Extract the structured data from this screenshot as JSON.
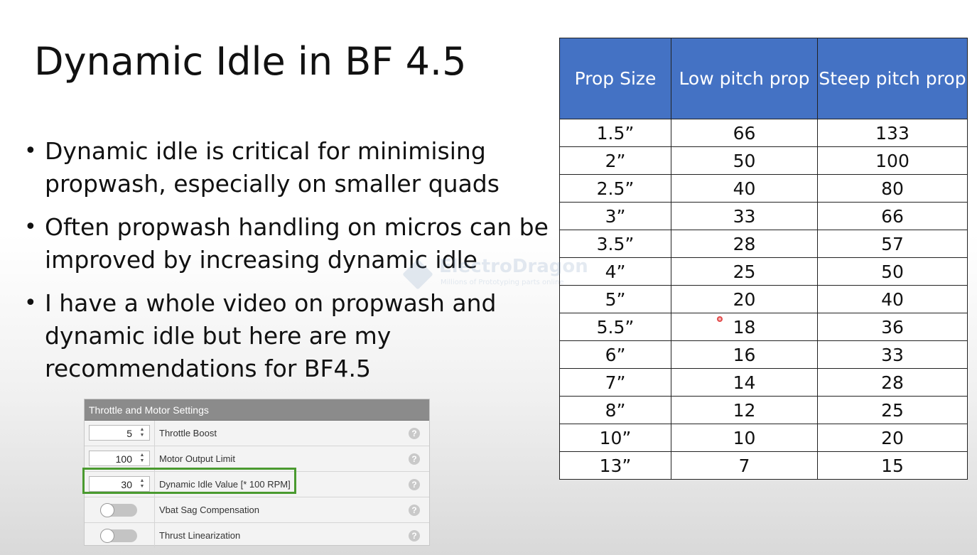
{
  "slide": {
    "title": "Dynamic Idle in BF 4.5",
    "bullets": [
      "Dynamic idle is critical for minimising propwash, especially on smaller quads",
      "Often propwash handling on micros can be improved by increasing dynamic idle",
      "I have a whole video on propwash and dynamic idle but here are my recommendations for BF4.5"
    ]
  },
  "table": {
    "headers": [
      "Prop Size",
      "Low pitch prop",
      "Steep pitch prop"
    ],
    "rows": [
      [
        "1.5”",
        "66",
        "133"
      ],
      [
        "2”",
        "50",
        "100"
      ],
      [
        "2.5”",
        "40",
        "80"
      ],
      [
        "3”",
        "33",
        "66"
      ],
      [
        "3.5”",
        "28",
        "57"
      ],
      [
        "4”",
        "25",
        "50"
      ],
      [
        "5”",
        "20",
        "40"
      ],
      [
        "5.5”",
        "18",
        "36"
      ],
      [
        "6”",
        "16",
        "33"
      ],
      [
        "7”",
        "14",
        "28"
      ],
      [
        "8”",
        "12",
        "25"
      ],
      [
        "10”",
        "10",
        "20"
      ],
      [
        "13”",
        "7",
        "15"
      ]
    ],
    "header_color": "#4472c4"
  },
  "settings_panel": {
    "title": "Throttle and Motor Settings",
    "rows": [
      {
        "type": "number",
        "value": "5",
        "label": "Throttle Boost",
        "help": "?"
      },
      {
        "type": "number",
        "value": "100",
        "label": "Motor Output Limit",
        "help": "?"
      },
      {
        "type": "number",
        "value": "30",
        "label": "Dynamic Idle Value [* 100 RPM]",
        "help": "?",
        "highlighted": true
      },
      {
        "type": "toggle",
        "on": false,
        "label": "Vbat Sag Compensation",
        "help": "?"
      },
      {
        "type": "toggle",
        "on": false,
        "label": "Thrust Linearization",
        "help": "?"
      }
    ],
    "highlight_color": "#4a9a2f"
  },
  "watermark": {
    "name": "ElectroDragon",
    "tagline": "Millions of Prototyping parts online"
  }
}
